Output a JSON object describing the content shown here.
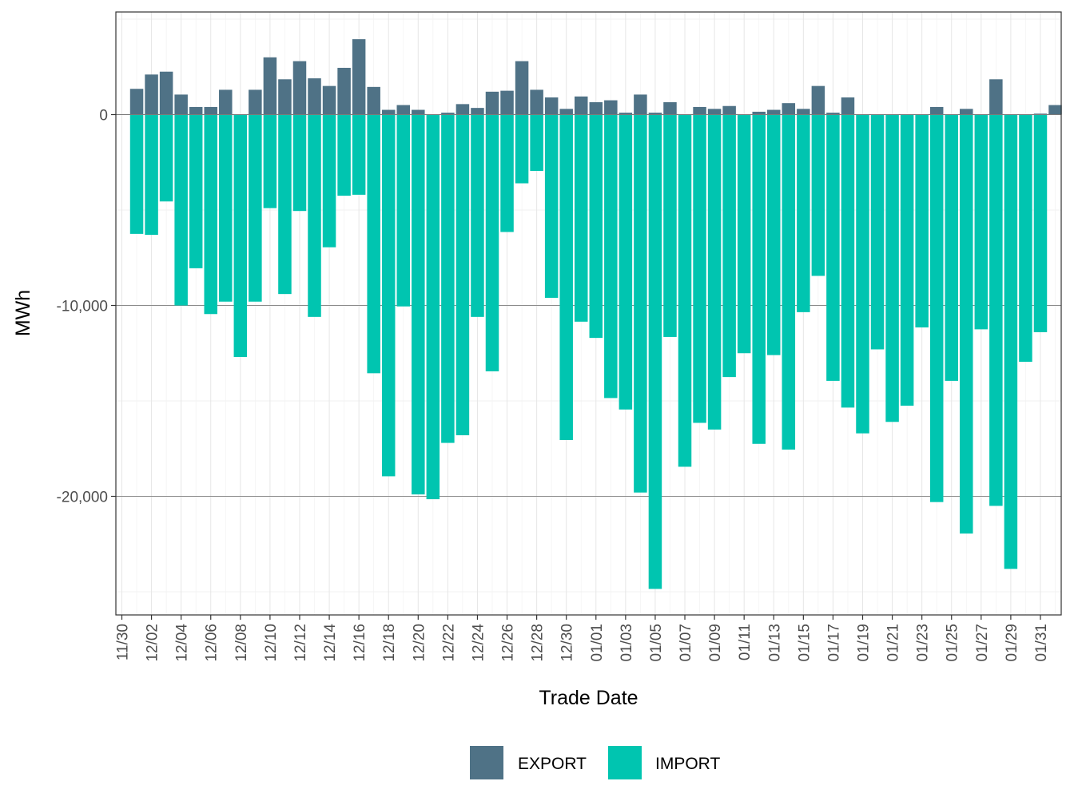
{
  "chart_data": {
    "type": "bar",
    "stacked": true,
    "title": "",
    "xlabel": "Trade Date",
    "ylabel": "MWh",
    "ylim": [
      -26000,
      5300
    ],
    "y_ticks": [
      0,
      -10000,
      -20000
    ],
    "y_tick_labels": [
      "0",
      "-10,000",
      "-20,000"
    ],
    "grid": true,
    "legend_position": "bottom",
    "x_tick_labels": [
      "11/30",
      "12/02",
      "12/04",
      "12/06",
      "12/08",
      "12/10",
      "12/12",
      "12/14",
      "12/16",
      "12/18",
      "12/20",
      "12/22",
      "12/24",
      "12/26",
      "12/28",
      "12/30",
      "01/01",
      "01/03",
      "01/05",
      "01/07",
      "01/09",
      "01/11",
      "01/13",
      "01/15",
      "01/17",
      "01/19",
      "01/21",
      "01/23",
      "01/25",
      "01/27",
      "01/29",
      "01/31"
    ],
    "categories": [
      "11/30",
      "12/01",
      "12/02",
      "12/03",
      "12/04",
      "12/05",
      "12/06",
      "12/07",
      "12/08",
      "12/09",
      "12/10",
      "12/11",
      "12/12",
      "12/13",
      "12/14",
      "12/15",
      "12/16",
      "12/17",
      "12/18",
      "12/19",
      "12/20",
      "12/21",
      "12/22",
      "12/23",
      "12/24",
      "12/25",
      "12/26",
      "12/27",
      "12/28",
      "12/29",
      "12/30",
      "12/31",
      "01/01",
      "01/02",
      "01/03",
      "01/04",
      "01/05",
      "01/06",
      "01/07",
      "01/08",
      "01/09",
      "01/10",
      "01/11",
      "01/12",
      "01/13",
      "01/14",
      "01/15",
      "01/16",
      "01/17",
      "01/18",
      "01/19",
      "01/20",
      "01/21",
      "01/22",
      "01/23",
      "01/24",
      "01/25",
      "01/26",
      "01/27",
      "01/28",
      "01/29",
      "01/30",
      "01/31"
    ],
    "series": [
      {
        "name": "EXPORT",
        "color": "#4f7286",
        "values": [
          1350,
          2100,
          2250,
          1050,
          400,
          400,
          1300,
          0,
          1300,
          3000,
          1850,
          2800,
          1900,
          1500,
          2450,
          3950,
          1450,
          250,
          500,
          250,
          0,
          100,
          550,
          350,
          1200,
          1250,
          2800,
          1300,
          900,
          300,
          950,
          650,
          750,
          100,
          1050,
          100,
          650,
          0,
          400,
          300,
          450,
          0,
          150,
          250,
          600,
          300,
          1500,
          100,
          900,
          0,
          0,
          0,
          0,
          0,
          400,
          0,
          300,
          0,
          1850,
          0,
          0,
          50,
          500
        ]
      },
      {
        "name": "IMPORT",
        "color": "#00c5b0",
        "values": [
          -6250,
          -6300,
          -4550,
          -10000,
          -8050,
          -10450,
          -9800,
          -12700,
          -9800,
          -4900,
          -9400,
          -5050,
          -10600,
          -6950,
          -4250,
          -4200,
          -13550,
          -18950,
          -10050,
          -19900,
          -20150,
          -17200,
          -16800,
          -10600,
          -13450,
          -6150,
          -3600,
          -2950,
          -9600,
          -17050,
          -10850,
          -11700,
          -14850,
          -15450,
          -19800,
          -24850,
          -11650,
          -18450,
          -16150,
          -16500,
          -13750,
          -12500,
          -17250,
          -12600,
          -17550,
          -10350,
          -8450,
          -13950,
          -15350,
          -16700,
          -12300,
          -16100,
          -15250,
          -11150,
          -20300,
          -13950,
          -21950,
          -11250,
          -20500,
          -23800,
          -12950,
          -11400,
          0
        ]
      }
    ]
  }
}
